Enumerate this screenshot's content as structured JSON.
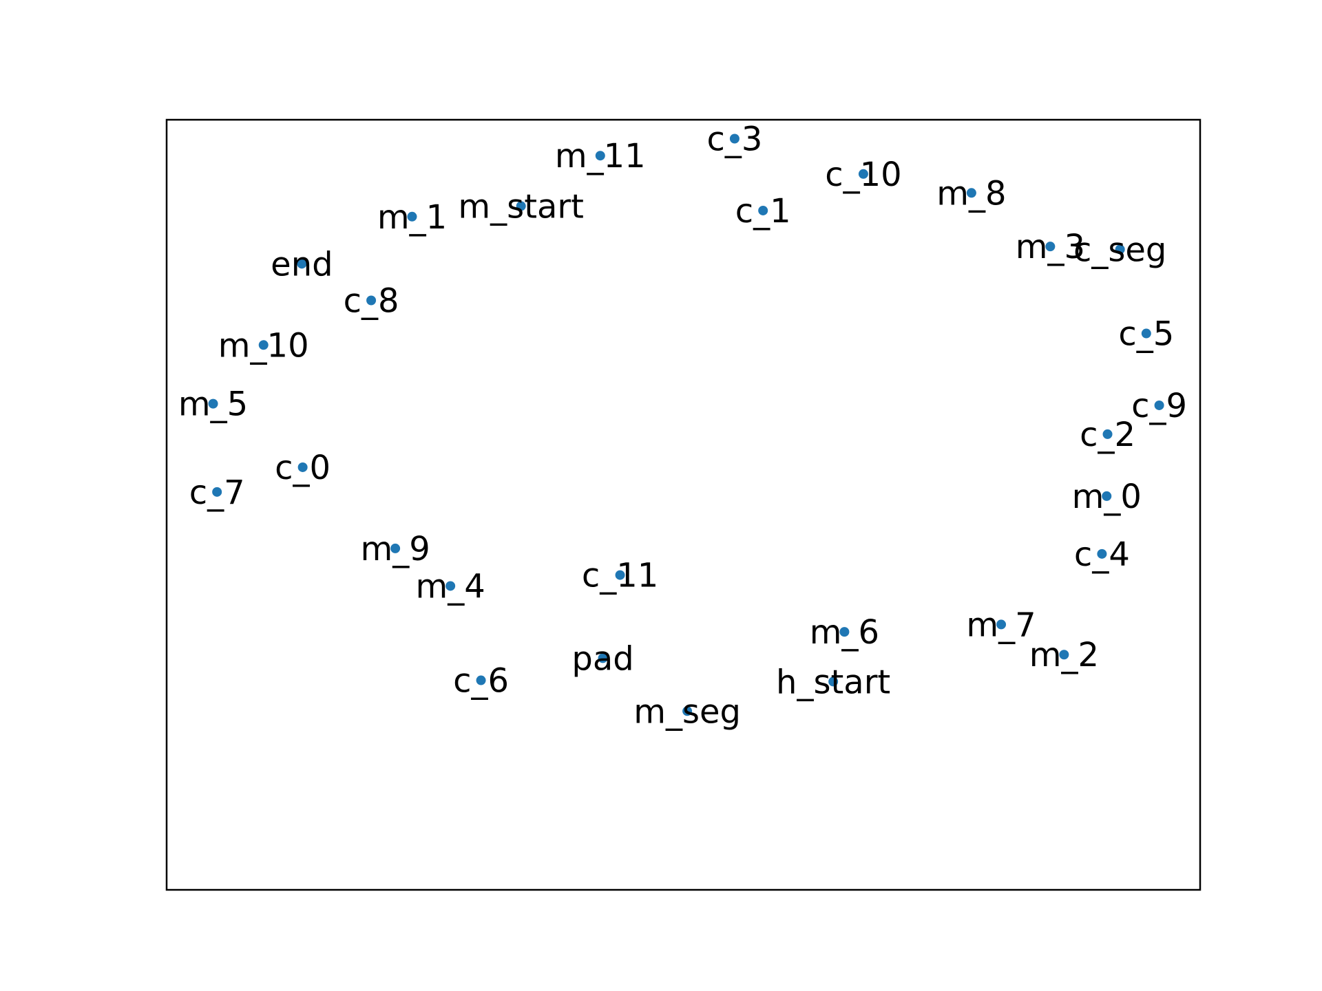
{
  "chart_data": {
    "type": "scatter",
    "title": "",
    "xlabel": "",
    "ylabel": "",
    "xlim": [
      -1.2,
      1.2
    ],
    "ylim": [
      -1.2,
      1.2
    ],
    "grid": false,
    "axis_ticks": false,
    "marker_color": "#1f77b4",
    "points": [
      {
        "label": "m_11",
        "x": -0.193,
        "y": 1.088
      },
      {
        "label": "c_3",
        "x": 0.119,
        "y": 1.141
      },
      {
        "label": "c_10",
        "x": 0.418,
        "y": 1.031
      },
      {
        "label": "m_8",
        "x": 0.669,
        "y": 0.972
      },
      {
        "label": "c_1",
        "x": 0.185,
        "y": 0.917
      },
      {
        "label": "m_start",
        "x": -0.377,
        "y": 0.931
      },
      {
        "label": "m_1",
        "x": -0.63,
        "y": 0.898
      },
      {
        "label": "m_3",
        "x": 0.852,
        "y": 0.805
      },
      {
        "label": "c_seg",
        "x": 1.014,
        "y": 0.796
      },
      {
        "label": "end",
        "x": -0.886,
        "y": 0.751
      },
      {
        "label": "c_8",
        "x": -0.725,
        "y": 0.637
      },
      {
        "label": "c_5",
        "x": 1.075,
        "y": 0.534
      },
      {
        "label": "m_10",
        "x": -0.975,
        "y": 0.498
      },
      {
        "label": "m_5",
        "x": -1.092,
        "y": 0.315
      },
      {
        "label": "c_9",
        "x": 1.105,
        "y": 0.31
      },
      {
        "label": "c_2",
        "x": 0.985,
        "y": 0.22
      },
      {
        "label": "c_0",
        "x": -0.884,
        "y": 0.117
      },
      {
        "label": "c_7",
        "x": -1.083,
        "y": 0.04
      },
      {
        "label": "m_0",
        "x": 0.983,
        "y": 0.027
      },
      {
        "label": "c_4",
        "x": 0.972,
        "y": -0.153
      },
      {
        "label": "m_9",
        "x": -0.669,
        "y": -0.136
      },
      {
        "label": "m_4",
        "x": -0.541,
        "y": -0.253
      },
      {
        "label": "c_11",
        "x": -0.147,
        "y": -0.219
      },
      {
        "label": "m_7",
        "x": 0.738,
        "y": -0.373
      },
      {
        "label": "m_6",
        "x": 0.374,
        "y": -0.396
      },
      {
        "label": "m_2",
        "x": 0.884,
        "y": -0.467
      },
      {
        "label": "pad",
        "x": -0.187,
        "y": -0.478
      },
      {
        "label": "c_6",
        "x": -0.47,
        "y": -0.547
      },
      {
        "label": "h_start",
        "x": 0.348,
        "y": -0.551
      },
      {
        "label": "m_seg",
        "x": 0.009,
        "y": -0.643
      }
    ]
  }
}
